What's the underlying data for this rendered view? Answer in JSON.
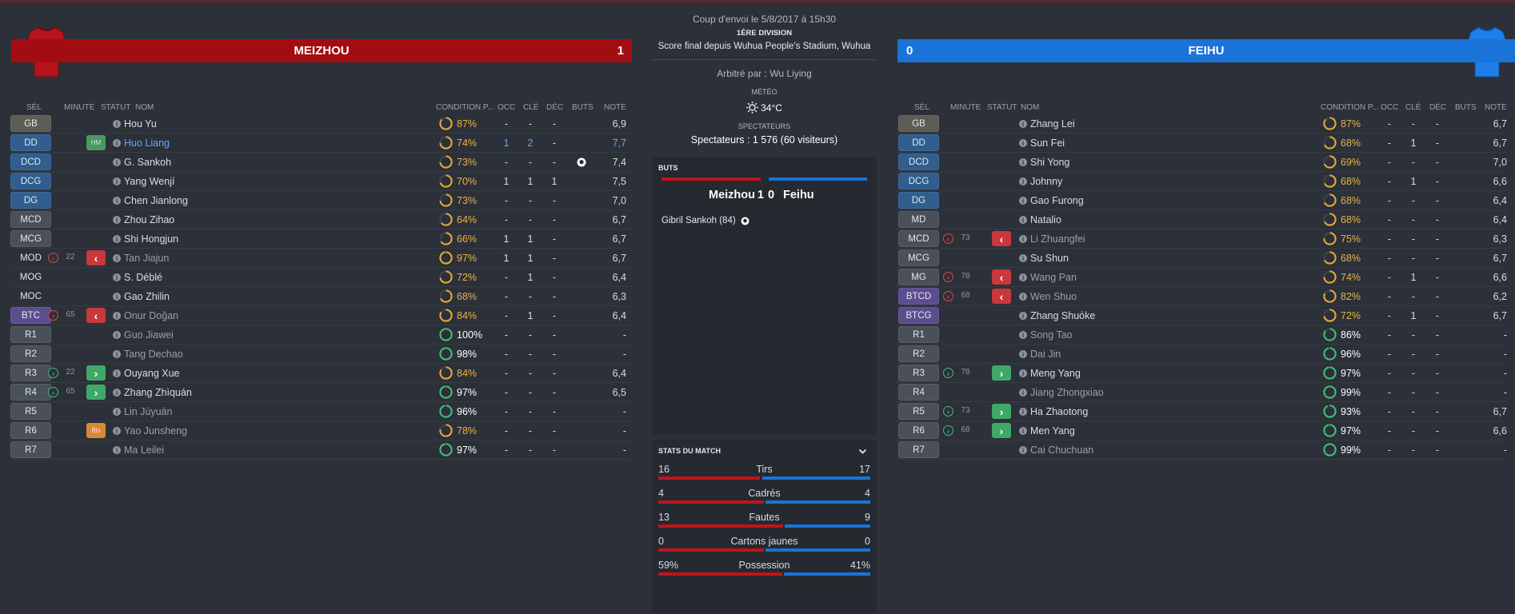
{
  "colors": {
    "home": "#a30d12",
    "away": "#1a73d9"
  },
  "home": {
    "name": "MEIZHOU",
    "score": "1",
    "headers": {
      "sel": "SÉL",
      "minute": "MINUTE",
      "statut": "STATUT",
      "nom": "NOM",
      "cond": "CONDITION P...",
      "occ": "OCC",
      "cle": "CLÉ",
      "dec": "DÉC",
      "buts": "BUTS",
      "note": "NOTE"
    },
    "players": [
      {
        "pos": "GB",
        "kind": "gk",
        "name": "Hou Yu",
        "cond": "87%",
        "cval": 87,
        "occ": "-",
        "cle": "-",
        "dec": "-",
        "note": "6,9"
      },
      {
        "pos": "DD",
        "kind": "def",
        "stat": "HM",
        "statkind": "hm",
        "name": "Huo Liang",
        "link": true,
        "cond": "74%",
        "cval": 74,
        "occ": "1",
        "cle": "2",
        "dec": "-",
        "note": "7,7",
        "blue": true
      },
      {
        "pos": "DCD",
        "kind": "def",
        "name": "G. Sankoh",
        "cond": "73%",
        "cval": 73,
        "occ": "-",
        "cle": "-",
        "dec": "-",
        "goal": true,
        "note": "7,4"
      },
      {
        "pos": "DCG",
        "kind": "def",
        "name": "Yang Wenjí",
        "cond": "70%",
        "cval": 70,
        "occ": "1",
        "cle": "1",
        "dec": "1",
        "note": "7,5"
      },
      {
        "pos": "DG",
        "kind": "def",
        "name": "Chen Jianlong",
        "cond": "73%",
        "cval": 73,
        "occ": "-",
        "cle": "-",
        "dec": "-",
        "note": "7,0"
      },
      {
        "pos": "MCD",
        "kind": "mid",
        "name": "Zhou Zihao",
        "cond": "64%",
        "cval": 64,
        "occ": "-",
        "cle": "-",
        "dec": "-",
        "note": "6,7"
      },
      {
        "pos": "MCG",
        "kind": "mid",
        "name": "Shi Hongjun",
        "cond": "66%",
        "cval": 66,
        "occ": "1",
        "cle": "1",
        "dec": "-",
        "note": "6,7"
      },
      {
        "pos": "MOD",
        "kind": "none",
        "sub": "out",
        "minute": "22",
        "stat": "‹",
        "statkind": "red",
        "name": "Tan Jiajun",
        "dim": true,
        "cond": "97%",
        "cval": 97,
        "occ": "1",
        "cle": "1",
        "dec": "-",
        "note": "6,7"
      },
      {
        "pos": "MOG",
        "kind": "none",
        "name": "S. Déblé",
        "cond": "72%",
        "cval": 72,
        "occ": "-",
        "cle": "1",
        "dec": "-",
        "note": "6,4"
      },
      {
        "pos": "MOC",
        "kind": "none",
        "name": "Gao Zhilin",
        "cond": "68%",
        "cval": 68,
        "occ": "-",
        "cle": "-",
        "dec": "-",
        "note": "6,3"
      },
      {
        "pos": "BTC",
        "kind": "att",
        "sub": "out",
        "minute": "65",
        "stat": "‹",
        "statkind": "red",
        "name": "Onur Doğan",
        "dim": true,
        "cond": "84%",
        "cval": 84,
        "occ": "-",
        "cle": "1",
        "dec": "-",
        "note": "6,4"
      },
      {
        "pos": "R1",
        "kind": "res",
        "name": "Guo Jiawei",
        "dim": true,
        "cond": "100%",
        "cval": 100,
        "white": true,
        "occ": "-",
        "cle": "-",
        "dec": "-",
        "note": "-"
      },
      {
        "pos": "R2",
        "kind": "res",
        "name": "Tang Dechao",
        "dim": true,
        "cond": "98%",
        "cval": 98,
        "white": true,
        "occ": "-",
        "cle": "-",
        "dec": "-",
        "note": "-"
      },
      {
        "pos": "R3",
        "kind": "res",
        "sub": "in",
        "minute": "22",
        "stat": "›",
        "statkind": "green",
        "name": "Ouyang Xue",
        "cond": "84%",
        "cval": 84,
        "occ": "-",
        "cle": "-",
        "dec": "-",
        "note": "6,4"
      },
      {
        "pos": "R4",
        "kind": "res",
        "sub": "in",
        "minute": "65",
        "stat": "›",
        "statkind": "green",
        "name": "Zhang Zhìquán",
        "cond": "97%",
        "cval": 97,
        "white": true,
        "occ": "-",
        "cle": "-",
        "dec": "-",
        "note": "6,5"
      },
      {
        "pos": "R5",
        "kind": "res",
        "name": "Lin Jùyuán",
        "dim": true,
        "cond": "96%",
        "cval": 96,
        "white": true,
        "occ": "-",
        "cle": "-",
        "dec": "-",
        "note": "-"
      },
      {
        "pos": "R6",
        "kind": "res",
        "stat": "Bls",
        "statkind": "bls",
        "name": "Yao Junsheng",
        "dim": true,
        "cond": "78%",
        "cval": 78,
        "occ": "-",
        "cle": "-",
        "dec": "-",
        "note": "-"
      },
      {
        "pos": "R7",
        "kind": "res",
        "name": "Ma Leilei",
        "dim": true,
        "cond": "97%",
        "cval": 97,
        "white": true,
        "occ": "-",
        "cle": "-",
        "dec": "-",
        "note": "-"
      }
    ]
  },
  "away": {
    "name": "FEIHU",
    "score": "0",
    "headers": {
      "sel": "SÉL",
      "minute": "MINUTE",
      "statut": "STATUT",
      "nom": "NOM",
      "cond": "CONDITION P...",
      "occ": "OCC",
      "cle": "CLÉ",
      "dec": "DÉC",
      "buts": "BUTS",
      "note": "NOTE"
    },
    "players": [
      {
        "pos": "GB",
        "kind": "gk",
        "name": "Zhang Lei",
        "cond": "87%",
        "cval": 87,
        "occ": "-",
        "cle": "-",
        "dec": "-",
        "note": "6,7"
      },
      {
        "pos": "DD",
        "kind": "def",
        "name": "Sun Fei",
        "cond": "68%",
        "cval": 68,
        "occ": "-",
        "cle": "1",
        "dec": "-",
        "note": "6,7"
      },
      {
        "pos": "DCD",
        "kind": "def",
        "name": "Shi Yong",
        "cond": "69%",
        "cval": 69,
        "occ": "-",
        "cle": "-",
        "dec": "-",
        "note": "7,0"
      },
      {
        "pos": "DCG",
        "kind": "def",
        "name": "Johnny",
        "cond": "68%",
        "cval": 68,
        "occ": "-",
        "cle": "1",
        "dec": "-",
        "note": "6,6"
      },
      {
        "pos": "DG",
        "kind": "def",
        "name": "Gao Furong",
        "cond": "68%",
        "cval": 68,
        "occ": "-",
        "cle": "-",
        "dec": "-",
        "note": "6,4"
      },
      {
        "pos": "MD",
        "kind": "mid",
        "name": "Natalio",
        "cond": "68%",
        "cval": 68,
        "occ": "-",
        "cle": "-",
        "dec": "-",
        "note": "6,4"
      },
      {
        "pos": "MCD",
        "kind": "mid",
        "sub": "out",
        "minute": "73",
        "stat": "‹",
        "statkind": "red",
        "name": "Li Zhuangfei",
        "dim": true,
        "cond": "75%",
        "cval": 75,
        "occ": "-",
        "cle": "-",
        "dec": "-",
        "note": "6,3"
      },
      {
        "pos": "MCG",
        "kind": "mid",
        "name": "Su Shun",
        "cond": "68%",
        "cval": 68,
        "occ": "-",
        "cle": "-",
        "dec": "-",
        "note": "6,7"
      },
      {
        "pos": "MG",
        "kind": "mid",
        "sub": "out",
        "minute": "78",
        "stat": "‹",
        "statkind": "red",
        "name": "Wang Pan",
        "dim": true,
        "cond": "74%",
        "cval": 74,
        "occ": "-",
        "cle": "1",
        "dec": "-",
        "note": "6,6"
      },
      {
        "pos": "BTCD",
        "kind": "att",
        "sub": "out",
        "minute": "68",
        "stat": "‹",
        "statkind": "red",
        "name": "Wen Shuo",
        "dim": true,
        "cond": "82%",
        "cval": 82,
        "occ": "-",
        "cle": "-",
        "dec": "-",
        "note": "6,2"
      },
      {
        "pos": "BTCG",
        "kind": "att",
        "name": "Zhang Shuòke",
        "cond": "72%",
        "cval": 72,
        "occ": "-",
        "cle": "1",
        "dec": "-",
        "note": "6,7"
      },
      {
        "pos": "R1",
        "kind": "res",
        "name": "Song Tao",
        "dim": true,
        "cond": "86%",
        "cval": 86,
        "white": true,
        "occ": "-",
        "cle": "-",
        "dec": "-",
        "note": "-"
      },
      {
        "pos": "R2",
        "kind": "res",
        "name": "Dai Jin",
        "dim": true,
        "cond": "96%",
        "cval": 96,
        "white": true,
        "occ": "-",
        "cle": "-",
        "dec": "-",
        "note": "-"
      },
      {
        "pos": "R3",
        "kind": "res",
        "sub": "in",
        "minute": "78",
        "stat": "›",
        "statkind": "green",
        "name": "Meng Yang",
        "cond": "97%",
        "cval": 97,
        "white": true,
        "occ": "-",
        "cle": "-",
        "dec": "-",
        "note": "-"
      },
      {
        "pos": "R4",
        "kind": "res",
        "name": "Jiang Zhongxiao",
        "dim": true,
        "cond": "99%",
        "cval": 99,
        "white": true,
        "occ": "-",
        "cle": "-",
        "dec": "-",
        "note": "-"
      },
      {
        "pos": "R5",
        "kind": "res",
        "sub": "in",
        "minute": "73",
        "stat": "›",
        "statkind": "green",
        "name": "Ha Zhaotong",
        "cond": "93%",
        "cval": 93,
        "white": true,
        "occ": "-",
        "cle": "-",
        "dec": "-",
        "note": "6,7"
      },
      {
        "pos": "R6",
        "kind": "res",
        "sub": "in",
        "minute": "68",
        "stat": "›",
        "statkind": "green",
        "name": "Men Yang",
        "cond": "97%",
        "cval": 97,
        "white": true,
        "occ": "-",
        "cle": "-",
        "dec": "-",
        "note": "6,6"
      },
      {
        "pos": "R7",
        "kind": "res",
        "name": "Cai Chuchuan",
        "dim": true,
        "cond": "99%",
        "cval": 99,
        "white": true,
        "occ": "-",
        "cle": "-",
        "dec": "-",
        "note": "-"
      }
    ]
  },
  "center": {
    "kickoff": "Coup d'envoi le 5/8/2017 à 15h30",
    "division": "1ÈRE DIVISION",
    "venue": "Score final depuis Wuhua People's Stadium, Wuhua",
    "referee": "Arbitré par : Wu Liying",
    "weather_label": "MÉTÉO",
    "weather_icon": "sun-icon",
    "temp": "34°C",
    "spect_label": "SPECTATEURS",
    "spect": "Spectateurs : 1 576 (60 visiteurs)",
    "goals_label": "BUTS",
    "home_name": "Meizhou",
    "home_score": "1",
    "away_score": "0",
    "away_name": "Feihu",
    "scorer": "Gibril Sankoh (84)",
    "stats_label": "STATS DU MATCH",
    "stats": [
      {
        "label": "Tirs",
        "home": "16",
        "away": "17",
        "hv": 16,
        "av": 17
      },
      {
        "label": "Cadrés",
        "home": "4",
        "away": "4",
        "hv": 4,
        "av": 4
      },
      {
        "label": "Fautes",
        "home": "13",
        "away": "9",
        "hv": 13,
        "av": 9
      },
      {
        "label": "Cartons jaunes",
        "home": "0",
        "away": "0",
        "hv": 0,
        "av": 0
      },
      {
        "label": "Possession",
        "home": "59%",
        "away": "41%",
        "hv": 59,
        "av": 41
      }
    ]
  }
}
